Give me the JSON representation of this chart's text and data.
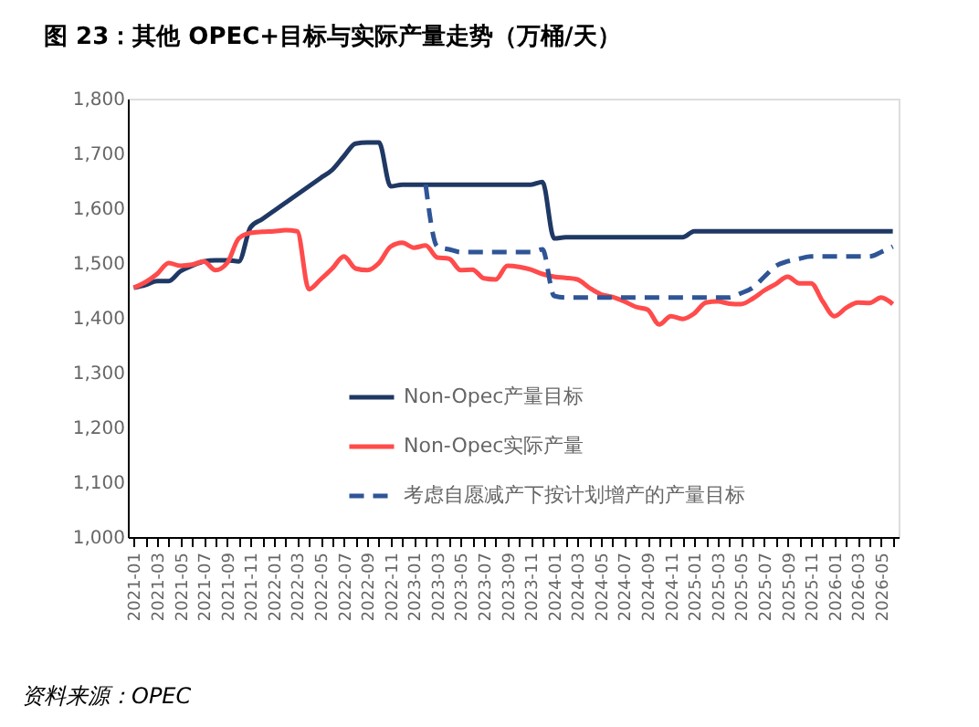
{
  "chart_data": {
    "type": "line",
    "title": "图 23：其他 OPEC+目标与实际产量走势（万桶/天）",
    "categories": [
      "2021-01",
      null,
      "2021-03",
      null,
      "2021-05",
      null,
      "2021-07",
      null,
      "2021-09",
      null,
      "2021-11",
      null,
      "2022-01",
      null,
      "2022-03",
      null,
      "2022-05",
      null,
      "2022-07",
      null,
      "2022-09",
      null,
      "2022-11",
      null,
      "2023-01",
      null,
      "2023-03",
      null,
      "2023-05",
      null,
      "2023-07",
      null,
      "2023-09",
      null,
      "2023-11",
      null,
      "2024-01",
      null,
      "2024-03",
      null,
      "2024-05",
      null,
      "2024-07",
      null,
      "2024-09",
      null,
      "2024-11",
      null,
      "2025-01",
      null,
      "2025-03",
      null,
      "2025-05",
      null,
      "2025-07",
      null,
      "2025-09",
      null,
      "2025-11",
      null,
      "2026-01",
      null,
      "2026-03",
      null,
      "2026-05",
      null
    ],
    "series": [
      {
        "name": "Non-Opec产量目标",
        "color": "#1f3864",
        "line_style": "solid",
        "values": [
          1455,
          1460,
          1467,
          1467,
          1485,
          1495,
          1503,
          1505,
          1505,
          1503,
          1565,
          1580,
          1595,
          1610,
          1625,
          1640,
          1655,
          1670,
          1695,
          1718,
          1720,
          1720,
          1640,
          1643,
          1643,
          1643,
          1643,
          1643,
          1643,
          1643,
          1643,
          1643,
          1643,
          1643,
          1643,
          1648,
          1545,
          1547,
          1547,
          1547,
          1547,
          1547,
          1547,
          1547,
          1547,
          1547,
          1547,
          1547,
          1558,
          1558,
          1558,
          1558,
          1558,
          1558,
          1558,
          1558,
          1558,
          1558,
          1558,
          1558,
          1558,
          1558,
          1558,
          1558,
          1558,
          1558
        ]
      },
      {
        "name": "Non-Opec实际产量",
        "color": "#ff4b4b",
        "line_style": "solid",
        "values": [
          1455,
          1465,
          1480,
          1500,
          1495,
          1497,
          1503,
          1487,
          1500,
          1545,
          1555,
          1557,
          1558,
          1560,
          1558,
          1452,
          1470,
          1490,
          1512,
          1490,
          1487,
          1500,
          1530,
          1537,
          1528,
          1532,
          1510,
          1508,
          1487,
          1488,
          1472,
          1470,
          1495,
          1493,
          1488,
          1480,
          1475,
          1473,
          1470,
          1455,
          1443,
          1438,
          1430,
          1420,
          1415,
          1388,
          1403,
          1398,
          1408,
          1428,
          1430,
          1426,
          1425,
          1435,
          1450,
          1462,
          1475,
          1463,
          1463,
          1430,
          1403,
          1418,
          1428,
          1427,
          1437,
          1425
        ]
      },
      {
        "name": "考虑自愿减产下按计划增产的产量目标",
        "color": "#2f5597",
        "line_style": "dashed",
        "values": [
          null,
          null,
          null,
          null,
          null,
          null,
          null,
          null,
          null,
          null,
          null,
          null,
          null,
          null,
          null,
          null,
          null,
          null,
          null,
          null,
          null,
          null,
          null,
          null,
          null,
          1643,
          1530,
          1525,
          1520,
          1520,
          1520,
          1520,
          1520,
          1520,
          1520,
          1525,
          1440,
          1437,
          1437,
          1437,
          1437,
          1437,
          1437,
          1437,
          1437,
          1437,
          1437,
          1437,
          1437,
          1437,
          1437,
          1437,
          1445,
          1455,
          1475,
          1495,
          1503,
          1508,
          1512,
          1512,
          1512,
          1512,
          1512,
          1512,
          1520,
          1530
        ]
      }
    ],
    "ylim": [
      1000,
      1800
    ],
    "yticks": [
      {
        "value": 1000,
        "label": "1,000"
      },
      {
        "value": 1100,
        "label": "1,100"
      },
      {
        "value": 1200,
        "label": "1,200"
      },
      {
        "value": 1300,
        "label": "1,300"
      },
      {
        "value": 1400,
        "label": "1,400"
      },
      {
        "value": 1500,
        "label": "1,500"
      },
      {
        "value": 1600,
        "label": "1,600"
      },
      {
        "value": 1700,
        "label": "1,700"
      },
      {
        "value": 1800,
        "label": "1,800"
      }
    ],
    "grid": false,
    "legend": "bottom",
    "annotations": [
      "资料来源：OPEC"
    ]
  }
}
